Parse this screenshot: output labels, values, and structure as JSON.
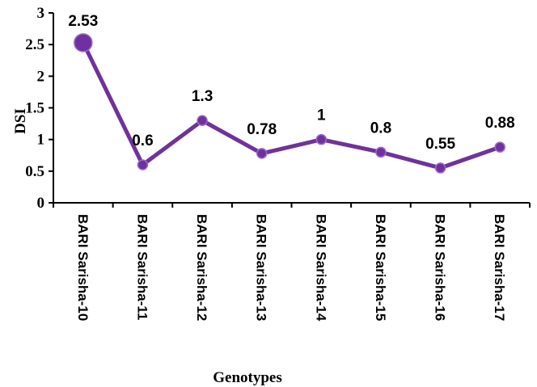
{
  "chart_data": {
    "type": "line",
    "categories": [
      "BARI Sarisha-10",
      "BARI Sarisha-11",
      "BARI Sarisha-12",
      "BARI Sarisha-13",
      "BARI Sarisha-14",
      "BARI Sarisha-15",
      "BARI Sarisha-16",
      "BARI Sarisha-17"
    ],
    "values": [
      2.53,
      0.6,
      1.3,
      0.78,
      1,
      0.8,
      0.55,
      0.88
    ],
    "data_labels": [
      "2.53",
      "0.6",
      "1.3",
      "0.78",
      "1",
      "0.8",
      "0.55",
      "0.88"
    ],
    "xlabel": "Genotypes",
    "ylabel": "DSI",
    "ylim": [
      0,
      3
    ],
    "yticks": [
      "0",
      "0.5",
      "1",
      "1.5",
      "2",
      "2.5",
      "3"
    ],
    "grid": false,
    "legend": "none",
    "line_color": "#7030a0"
  }
}
